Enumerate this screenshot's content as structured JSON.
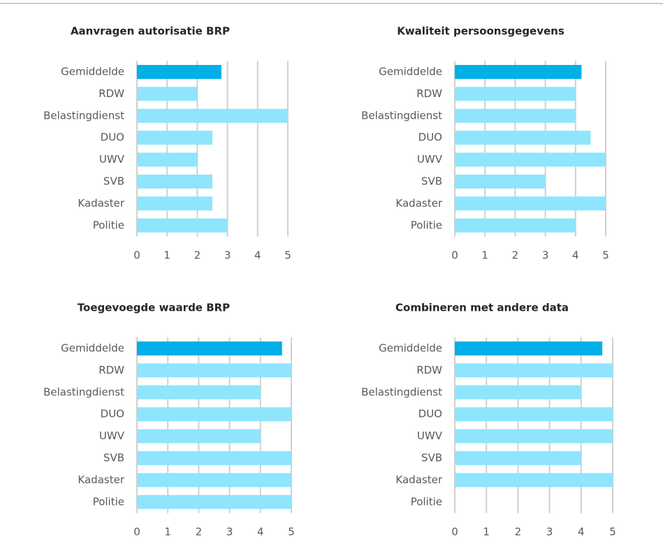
{
  "chart_data": [
    {
      "type": "bar",
      "orientation": "horizontal",
      "title": "Aanvragen autorisatie BRP",
      "categories": [
        "Gemiddelde",
        "RDW",
        "Belastingdienst",
        "DUO",
        "UWV",
        "SVB",
        "Kadaster",
        "Politie"
      ],
      "values": [
        2.8,
        2,
        5,
        2.5,
        2,
        2.5,
        2.5,
        3
      ],
      "colors": [
        "#00b0e6",
        "#8ee5fd",
        "#8ee5fd",
        "#8ee5fd",
        "#8ee5fd",
        "#8ee5fd",
        "#8ee5fd",
        "#8ee5fd"
      ],
      "xlim": [
        0,
        5
      ],
      "xticks": [
        0,
        1,
        2,
        3,
        4,
        5
      ],
      "grid": true
    },
    {
      "type": "bar",
      "orientation": "horizontal",
      "title": "Kwaliteit persoonsgegevens",
      "categories": [
        "Gemiddelde",
        "RDW",
        "Belastingdienst",
        "DUO",
        "UWV",
        "SVB",
        "Kadaster",
        "Politie"
      ],
      "values": [
        4.2,
        4,
        4,
        4.5,
        5,
        3,
        5,
        4
      ],
      "colors": [
        "#00b0e6",
        "#8ee5fd",
        "#8ee5fd",
        "#8ee5fd",
        "#8ee5fd",
        "#8ee5fd",
        "#8ee5fd",
        "#8ee5fd"
      ],
      "xlim": [
        0,
        5
      ],
      "xticks": [
        0,
        1,
        2,
        3,
        4,
        5
      ],
      "grid": true
    },
    {
      "type": "bar",
      "orientation": "horizontal",
      "title": "Toegevoegde waarde BRP",
      "categories": [
        "Gemiddelde",
        "RDW",
        "Belastingdienst",
        "DUO",
        "UWV",
        "SVB",
        "Kadaster",
        "Politie"
      ],
      "values": [
        4.7,
        5,
        4,
        5,
        4,
        5,
        5,
        5
      ],
      "colors": [
        "#00b0e6",
        "#8ee5fd",
        "#8ee5fd",
        "#8ee5fd",
        "#8ee5fd",
        "#8ee5fd",
        "#8ee5fd",
        "#8ee5fd"
      ],
      "xlim": [
        0,
        5
      ],
      "xticks": [
        0,
        1,
        2,
        3,
        4,
        5
      ],
      "grid": true
    },
    {
      "type": "bar",
      "orientation": "horizontal",
      "title": "Combineren met andere data",
      "categories": [
        "Gemiddelde",
        "RDW",
        "Belastingdienst",
        "DUO",
        "UWV",
        "SVB",
        "Kadaster",
        "Politie"
      ],
      "values": [
        4.67,
        5,
        4,
        5,
        5,
        4,
        5,
        null
      ],
      "colors": [
        "#00b0e6",
        "#8ee5fd",
        "#8ee5fd",
        "#8ee5fd",
        "#8ee5fd",
        "#8ee5fd",
        "#8ee5fd",
        "#8ee5fd"
      ],
      "xlim": [
        0,
        5
      ],
      "xticks": [
        0,
        1,
        2,
        3,
        4,
        5
      ],
      "grid": true
    }
  ]
}
